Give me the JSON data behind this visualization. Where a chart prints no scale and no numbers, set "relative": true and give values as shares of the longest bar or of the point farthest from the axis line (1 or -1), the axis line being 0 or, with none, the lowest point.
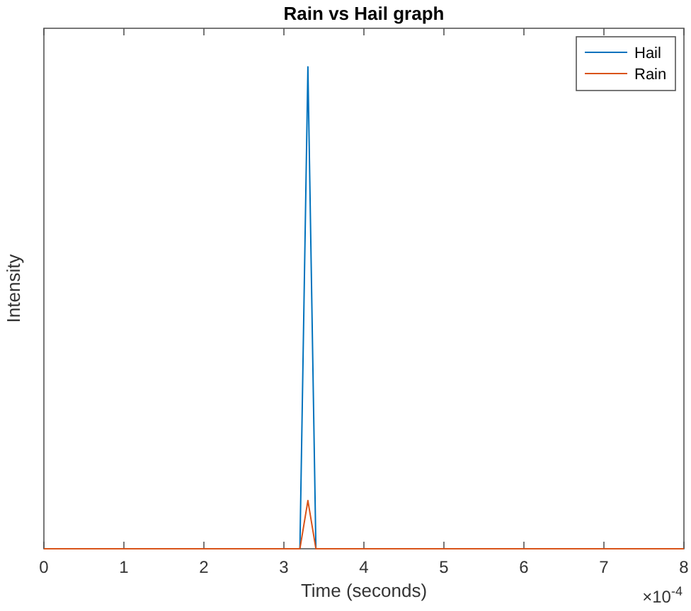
{
  "chart_data": {
    "type": "line",
    "title": "Rain vs Hail graph",
    "xlabel": "Time (seconds)",
    "ylabel": "Intensity",
    "relative": true,
    "x": [
      0,
      3.2,
      3.3,
      3.4,
      8
    ],
    "series": [
      {
        "name": "Hail",
        "color": "#0072bd",
        "values": [
          0,
          0,
          1,
          0,
          0
        ]
      },
      {
        "name": "Rain",
        "color": "#d95319",
        "values": [
          0,
          0,
          0.1,
          0,
          0
        ]
      }
    ],
    "xlim": [
      0,
      8
    ],
    "xticks": [
      0,
      1,
      2,
      3,
      4,
      5,
      6,
      7,
      8
    ],
    "annotations": [
      "×10$^{-4}$"
    ],
    "grid": false,
    "legend": "top right",
    "line_style": "solid"
  }
}
